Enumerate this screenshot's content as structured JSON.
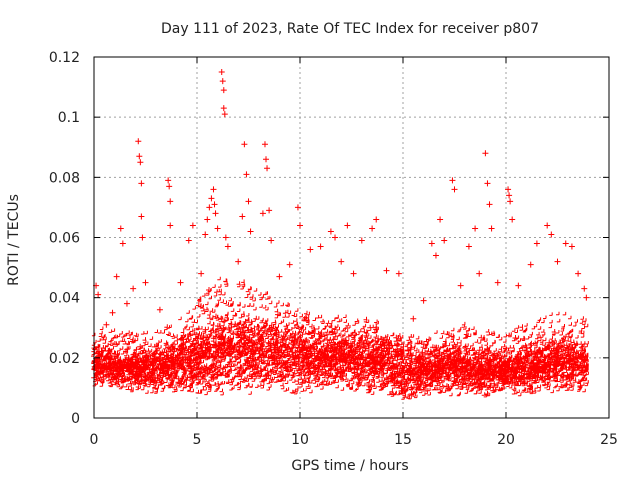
{
  "chart_data": {
    "type": "scatter",
    "title": "Day 111 of 2023, Rate Of TEC Index for receiver p807",
    "xlabel": "GPS time / hours",
    "ylabel": "ROTI / TECUs",
    "xlim": [
      0,
      25
    ],
    "ylim": [
      0,
      0.12
    ],
    "xticks": [
      "0",
      "5",
      "10",
      "15",
      "20",
      "25"
    ],
    "yticks": [
      "0",
      "0.02",
      "0.04",
      "0.06",
      "0.08",
      "0.1",
      "0.12"
    ],
    "grid": true,
    "marker": "plus",
    "color": "#ff0000",
    "series": [
      {
        "points": [
          [
            0.1,
            0.044
          ],
          [
            0.2,
            0.041
          ],
          [
            0.6,
            0.031
          ],
          [
            0.9,
            0.035
          ],
          [
            1.1,
            0.047
          ],
          [
            1.3,
            0.063
          ],
          [
            1.4,
            0.058
          ],
          [
            1.6,
            0.038
          ],
          [
            1.9,
            0.043
          ],
          [
            2.15,
            0.092
          ],
          [
            2.2,
            0.087
          ],
          [
            2.25,
            0.085
          ],
          [
            2.3,
            0.078
          ],
          [
            2.3,
            0.067
          ],
          [
            2.35,
            0.06
          ],
          [
            2.5,
            0.045
          ],
          [
            3.2,
            0.036
          ],
          [
            3.6,
            0.079
          ],
          [
            3.65,
            0.077
          ],
          [
            3.7,
            0.072
          ],
          [
            3.7,
            0.064
          ],
          [
            4.2,
            0.045
          ],
          [
            4.6,
            0.059
          ],
          [
            4.8,
            0.064
          ],
          [
            5.2,
            0.048
          ],
          [
            5.4,
            0.061
          ],
          [
            5.5,
            0.066
          ],
          [
            5.6,
            0.07
          ],
          [
            5.7,
            0.073
          ],
          [
            5.8,
            0.076
          ],
          [
            5.85,
            0.071
          ],
          [
            5.9,
            0.068
          ],
          [
            6.0,
            0.063
          ],
          [
            6.2,
            0.115
          ],
          [
            6.25,
            0.112
          ],
          [
            6.3,
            0.109
          ],
          [
            6.3,
            0.103
          ],
          [
            6.35,
            0.101
          ],
          [
            6.4,
            0.06
          ],
          [
            6.5,
            0.057
          ],
          [
            7.0,
            0.052
          ],
          [
            7.2,
            0.067
          ],
          [
            7.3,
            0.091
          ],
          [
            7.4,
            0.081
          ],
          [
            7.5,
            0.072
          ],
          [
            7.6,
            0.062
          ],
          [
            8.2,
            0.068
          ],
          [
            8.3,
            0.091
          ],
          [
            8.35,
            0.086
          ],
          [
            8.4,
            0.083
          ],
          [
            8.5,
            0.069
          ],
          [
            8.6,
            0.059
          ],
          [
            9.0,
            0.047
          ],
          [
            9.5,
            0.051
          ],
          [
            9.9,
            0.07
          ],
          [
            10.0,
            0.064
          ],
          [
            10.5,
            0.056
          ],
          [
            11.0,
            0.057
          ],
          [
            11.5,
            0.062
          ],
          [
            11.7,
            0.06
          ],
          [
            12.0,
            0.052
          ],
          [
            12.3,
            0.064
          ],
          [
            12.6,
            0.048
          ],
          [
            13.0,
            0.059
          ],
          [
            13.5,
            0.063
          ],
          [
            13.7,
            0.066
          ],
          [
            14.2,
            0.049
          ],
          [
            14.8,
            0.048
          ],
          [
            15.5,
            0.033
          ],
          [
            16.0,
            0.039
          ],
          [
            16.4,
            0.058
          ],
          [
            16.6,
            0.054
          ],
          [
            16.8,
            0.066
          ],
          [
            17.0,
            0.059
          ],
          [
            17.4,
            0.079
          ],
          [
            17.5,
            0.076
          ],
          [
            17.8,
            0.044
          ],
          [
            18.2,
            0.057
          ],
          [
            18.5,
            0.063
          ],
          [
            18.7,
            0.048
          ],
          [
            19.0,
            0.088
          ],
          [
            19.1,
            0.078
          ],
          [
            19.2,
            0.071
          ],
          [
            19.3,
            0.063
          ],
          [
            19.6,
            0.045
          ],
          [
            20.1,
            0.076
          ],
          [
            20.15,
            0.074
          ],
          [
            20.2,
            0.072
          ],
          [
            20.3,
            0.066
          ],
          [
            20.6,
            0.044
          ],
          [
            21.2,
            0.051
          ],
          [
            21.5,
            0.058
          ],
          [
            22.0,
            0.064
          ],
          [
            22.2,
            0.061
          ],
          [
            22.5,
            0.052
          ],
          [
            22.9,
            0.058
          ],
          [
            23.2,
            0.057
          ],
          [
            23.5,
            0.048
          ],
          [
            23.8,
            0.043
          ],
          [
            23.9,
            0.04
          ]
        ]
      }
    ],
    "envelope": {
      "x": [
        0,
        1,
        2,
        3,
        4,
        5,
        6,
        7,
        8,
        9,
        10,
        11,
        12,
        13,
        14,
        15,
        16,
        17,
        18,
        19,
        20,
        21,
        22,
        23,
        24
      ],
      "low": [
        0.009,
        0.009,
        0.008,
        0.008,
        0.008,
        0.007,
        0.006,
        0.007,
        0.008,
        0.008,
        0.006,
        0.009,
        0.008,
        0.008,
        0.007,
        0.005,
        0.006,
        0.007,
        0.007,
        0.006,
        0.008,
        0.007,
        0.008,
        0.008,
        0.008
      ],
      "mid": [
        0.017,
        0.016,
        0.016,
        0.016,
        0.017,
        0.019,
        0.021,
        0.021,
        0.021,
        0.02,
        0.019,
        0.019,
        0.019,
        0.018,
        0.018,
        0.015,
        0.015,
        0.016,
        0.016,
        0.015,
        0.015,
        0.016,
        0.017,
        0.018,
        0.016
      ],
      "high": [
        0.03,
        0.029,
        0.028,
        0.029,
        0.032,
        0.038,
        0.047,
        0.046,
        0.043,
        0.04,
        0.036,
        0.035,
        0.034,
        0.033,
        0.032,
        0.027,
        0.027,
        0.029,
        0.031,
        0.029,
        0.028,
        0.031,
        0.034,
        0.036,
        0.032
      ]
    }
  }
}
